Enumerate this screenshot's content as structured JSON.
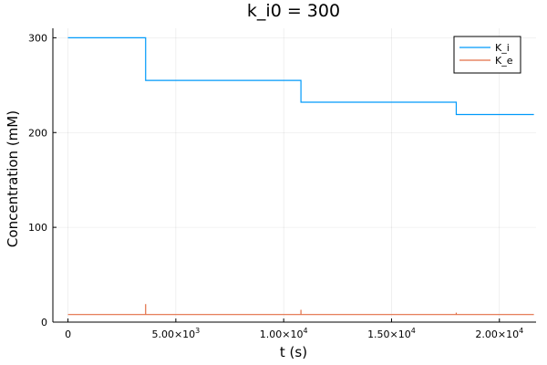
{
  "chart_data": {
    "type": "line",
    "title": "k_i0 = 300",
    "xlabel": "t (s)",
    "ylabel": "Concentration (mM)",
    "xlim": [
      -700,
      21700
    ],
    "ylim": [
      0,
      310
    ],
    "x_ticks": [
      0,
      5000,
      10000,
      15000,
      20000
    ],
    "x_tick_labels": [
      {
        "mantissa": "0",
        "exp": ""
      },
      {
        "mantissa": "5.00×10",
        "exp": "3"
      },
      {
        "mantissa": "1.00×10",
        "exp": "4"
      },
      {
        "mantissa": "1.50×10",
        "exp": "4"
      },
      {
        "mantissa": "2.00×10",
        "exp": "4"
      }
    ],
    "y_ticks": [
      0,
      100,
      200,
      300
    ],
    "y_tick_labels": [
      "0",
      "100",
      "200",
      "300"
    ],
    "grid": true,
    "legend_position": "top-right",
    "series": [
      {
        "name": "K_i",
        "color": "#009AFA",
        "x": [
          0,
          3600,
          3600,
          10800,
          10800,
          18000,
          18000,
          21600
        ],
        "y": [
          300,
          300,
          255,
          255,
          232,
          232,
          219,
          219
        ]
      },
      {
        "name": "K_e",
        "color": "#E26F46",
        "x": [
          0,
          3600,
          3600,
          3600,
          3600,
          10800,
          10800,
          10800,
          10800,
          18000,
          18000,
          18000,
          18000,
          21600
        ],
        "y": [
          8,
          8,
          19,
          19,
          8,
          8,
          13,
          13,
          8,
          8,
          10,
          10,
          8,
          8
        ]
      }
    ]
  }
}
